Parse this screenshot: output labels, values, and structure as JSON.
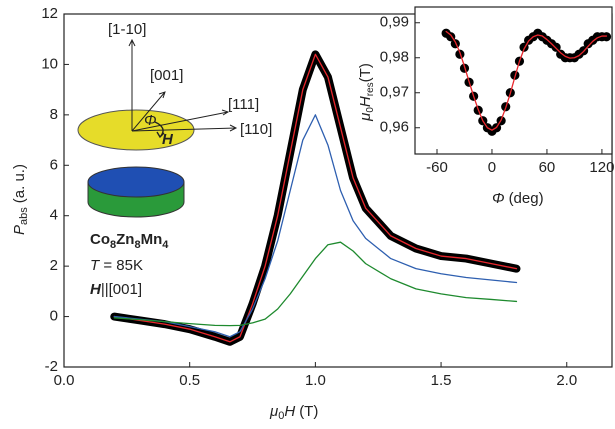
{
  "chart_data": [
    {
      "type": "line",
      "xlabel": [
        "μ",
        "0",
        "H",
        "(T)"
      ],
      "ylabel": [
        "P",
        "abs",
        "(a. u.)"
      ],
      "xlim": [
        0,
        2.18
      ],
      "ylim": [
        -2,
        12
      ],
      "xticks": [
        {
          "value": 0,
          "label": "0.0"
        },
        0.5,
        {
          "value": 1,
          "label": "1.0"
        },
        1.5,
        {
          "value": 2,
          "label": "2.0"
        }
      ],
      "yticks": [
        -2,
        0,
        2,
        4,
        6,
        8,
        10,
        12
      ],
      "x": [
        0.2,
        0.3,
        0.4,
        0.5,
        0.6,
        0.66,
        0.7,
        0.75,
        0.8,
        0.85,
        0.9,
        0.95,
        1.0,
        1.05,
        1.1,
        1.15,
        1.2,
        1.3,
        1.4,
        1.5,
        1.6,
        1.7,
        1.8
      ],
      "series": [
        {
          "color": "#000000",
          "style": "thick-line",
          "values": [
            0,
            -0.15,
            -0.3,
            -0.5,
            -0.8,
            -1.0,
            -0.8,
            0.5,
            2,
            4,
            6.5,
            9,
            10.4,
            9.5,
            7.5,
            5.5,
            4.3,
            3.2,
            2.7,
            2.4,
            2.3,
            2.1,
            1.9
          ]
        },
        {
          "color": "#e8262c",
          "style": "line",
          "values": [
            0,
            -0.15,
            -0.3,
            -0.5,
            -0.8,
            -1.0,
            -0.8,
            0.5,
            2,
            4,
            6.5,
            9,
            10.4,
            9.5,
            7.5,
            5.5,
            4.3,
            3.2,
            2.7,
            2.4,
            2.3,
            2.1,
            1.9
          ]
        },
        {
          "color": "#2e5fb0",
          "style": "line",
          "values": [
            0,
            -0.1,
            -0.2,
            -0.4,
            -0.6,
            -0.8,
            -0.6,
            0.3,
            1.5,
            3,
            5,
            7,
            8,
            6.8,
            5,
            3.8,
            3.1,
            2.3,
            1.9,
            1.7,
            1.55,
            1.45,
            1.35
          ]
        },
        {
          "color": "#1e8a2e",
          "style": "line",
          "values": [
            -0.05,
            -0.12,
            -0.2,
            -0.28,
            -0.35,
            -0.36,
            -0.35,
            -0.25,
            -0.1,
            0.3,
            0.9,
            1.6,
            2.3,
            2.85,
            2.95,
            2.6,
            2.1,
            1.5,
            1.1,
            0.9,
            0.75,
            0.68,
            0.6
          ]
        }
      ],
      "annotations": [
        "[1-10]",
        "[001]",
        "[111]",
        "[110]",
        "Φ",
        "H"
      ],
      "sample": {
        "formula": [
          "Co",
          "8",
          "Zn",
          "8",
          "Mn",
          "4"
        ],
        "temperature": [
          "T",
          " = 85K"
        ],
        "field": [
          "H",
          "||[001]"
        ]
      }
    },
    {
      "type": "scatter",
      "xlabel": [
        "Φ",
        "(deg)"
      ],
      "ylabel": [
        "μ",
        "0",
        "H",
        "res",
        "(T)"
      ],
      "xlim": [
        -84,
        131
      ],
      "ylim": [
        0.9525,
        0.9945
      ],
      "xticks": [
        -60,
        0,
        60,
        120
      ],
      "yticks": [
        {
          "value": 0.96,
          "label": "0,96"
        },
        {
          "value": 0.97,
          "label": "0,97"
        },
        {
          "value": 0.98,
          "label": "0,98"
        },
        {
          "value": 0.99,
          "label": "0,99"
        }
      ],
      "x": [
        -50,
        -45,
        -40,
        -35,
        -30,
        -25,
        -20,
        -15,
        -10,
        -5,
        0,
        5,
        10,
        15,
        20,
        25,
        30,
        35,
        40,
        45,
        50,
        55,
        60,
        65,
        70,
        75,
        80,
        85,
        90,
        95,
        100,
        105,
        110,
        115,
        120,
        125
      ],
      "series": [
        {
          "color": "#000000",
          "style": "markers",
          "values": [
            0.987,
            0.986,
            0.984,
            0.981,
            0.977,
            0.973,
            0.969,
            0.965,
            0.962,
            0.96,
            0.959,
            0.96,
            0.962,
            0.966,
            0.97,
            0.975,
            0.979,
            0.983,
            0.985,
            0.986,
            0.987,
            0.986,
            0.985,
            0.984,
            0.983,
            0.981,
            0.98,
            0.98,
            0.98,
            0.981,
            0.982,
            0.984,
            0.985,
            0.986,
            0.986,
            0.986
          ]
        },
        {
          "color": "#e8262c",
          "style": "line",
          "values": [
            0.9875,
            0.9865,
            0.9845,
            0.9815,
            0.9775,
            0.9732,
            0.969,
            0.9652,
            0.962,
            0.96,
            0.9593,
            0.9601,
            0.9622,
            0.9657,
            0.9698,
            0.9745,
            0.979,
            0.9825,
            0.9848,
            0.986,
            0.9865,
            0.9862,
            0.9852,
            0.984,
            0.9827,
            0.9814,
            0.9804,
            0.9799,
            0.98,
            0.9806,
            0.9818,
            0.9833,
            0.9847,
            0.9857,
            0.9862,
            0.9862
          ]
        }
      ]
    }
  ]
}
